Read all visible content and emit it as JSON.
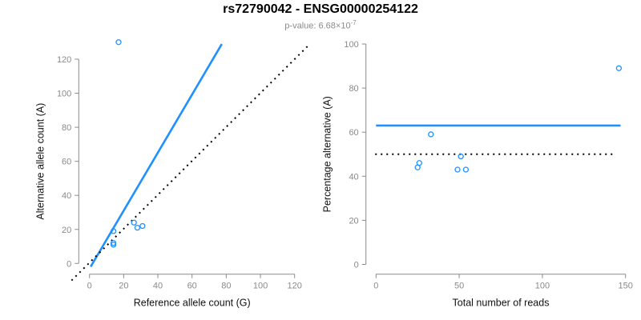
{
  "header": {
    "title": "rs72790042 - ENSG00000254122",
    "subtitle_prefix": "p-value: 6.68×10",
    "subtitle_exponent": "-7"
  },
  "colors": {
    "accent_blue": "#1E90FF",
    "dotted_black": "#000000",
    "axis_gray": "#8a8a8a",
    "title_black": "#000000",
    "subtitle_gray": "#8a8a8a"
  },
  "chart_data": [
    {
      "type": "scatter",
      "xlabel": "Reference allele count (G)",
      "ylabel": "Alternative allele count (A)",
      "xlim": [
        0,
        120
      ],
      "ylim": [
        0,
        130
      ],
      "xticks": [
        0,
        20,
        40,
        60,
        80,
        100,
        120
      ],
      "yticks": [
        0,
        20,
        40,
        60,
        80,
        100,
        120
      ],
      "grid": false,
      "points": [
        [
          14,
          19
        ],
        [
          14,
          12
        ],
        [
          14,
          11
        ],
        [
          26,
          24
        ],
        [
          28,
          21
        ],
        [
          31,
          22
        ],
        [
          17,
          130
        ]
      ],
      "lines": [
        {
          "name": "fit-line",
          "style": "solid",
          "points": [
            [
              0.7,
              -1.9
            ],
            [
              77.4,
              128.9
            ]
          ]
        },
        {
          "name": "identity-line",
          "style": "dotted",
          "points": [
            [
              -10.5,
              -10
            ],
            [
              129,
              129
            ]
          ]
        }
      ]
    },
    {
      "type": "scatter",
      "xlabel": "Total number of reads",
      "ylabel": "Percentage alternative (A)",
      "xlim": [
        0,
        150
      ],
      "ylim": [
        0,
        100
      ],
      "xticks": [
        0,
        50,
        100,
        150
      ],
      "yticks": [
        0,
        20,
        40,
        60,
        80,
        100
      ],
      "grid": false,
      "points": [
        [
          33,
          59
        ],
        [
          26,
          46
        ],
        [
          25,
          44
        ],
        [
          51,
          49
        ],
        [
          49,
          43
        ],
        [
          54,
          43
        ],
        [
          146,
          89
        ]
      ],
      "lines": [
        {
          "name": "fit-line",
          "style": "solid",
          "points": [
            [
              0,
              63
            ],
            [
              147,
              63
            ]
          ]
        },
        {
          "name": "reference-line",
          "style": "dotted",
          "points": [
            [
              -0.5,
              50
            ],
            [
              144,
              50
            ]
          ]
        }
      ]
    }
  ]
}
